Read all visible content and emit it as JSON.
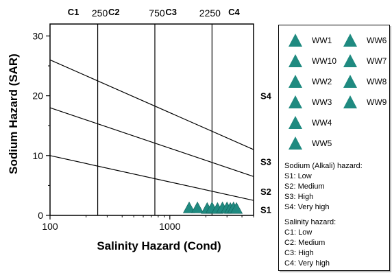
{
  "chart_data": {
    "type": "scatter",
    "title": "",
    "xlabel": "Salinity Hazard (Cond)",
    "ylabel": "Sodium Hazard (SAR)",
    "x_scale": "log",
    "xlim": [
      100,
      5000
    ],
    "ylim": [
      0,
      32
    ],
    "x_ticks": [
      "100",
      "1000"
    ],
    "y_ticks": [
      "0",
      "10",
      "20",
      "30"
    ],
    "top_class_labels": [
      "C1",
      "C2",
      "C3",
      "C4"
    ],
    "top_boundaries": [
      250,
      750,
      2250
    ],
    "top_boundary_labels": [
      "250",
      "750",
      "2250"
    ],
    "sodium_lines": [
      {
        "x": [
          100,
          5000
        ],
        "y": [
          10,
          2.5
        ]
      },
      {
        "x": [
          100,
          5000
        ],
        "y": [
          18,
          6.5
        ]
      },
      {
        "x": [
          100,
          5000
        ],
        "y": [
          26,
          11
        ]
      }
    ],
    "right_class_labels": [
      {
        "label": "S4",
        "y": 20
      },
      {
        "label": "S3",
        "y": 9
      },
      {
        "label": "S2",
        "y": 4
      },
      {
        "label": "S1",
        "y": 1
      }
    ],
    "series": [
      {
        "name": "WW1",
        "x": [
          1450
        ],
        "y": [
          1.2
        ]
      },
      {
        "name": "WW10",
        "x": [
          1700
        ],
        "y": [
          1.2
        ]
      },
      {
        "name": "WW2",
        "x": [
          2050
        ],
        "y": [
          1.1
        ]
      },
      {
        "name": "WW3",
        "x": [
          2250
        ],
        "y": [
          1.2
        ]
      },
      {
        "name": "WW4",
        "x": [
          2500
        ],
        "y": [
          1.1
        ]
      },
      {
        "name": "WW5",
        "x": [
          2750
        ],
        "y": [
          1.2
        ]
      },
      {
        "name": "WW6",
        "x": [
          3000
        ],
        "y": [
          1.2
        ]
      },
      {
        "name": "WW7",
        "x": [
          3200
        ],
        "y": [
          1.1
        ]
      },
      {
        "name": "WW8",
        "x": [
          3400
        ],
        "y": [
          1.2
        ]
      },
      {
        "name": "WW9",
        "x": [
          3600
        ],
        "y": [
          1.1
        ]
      }
    ],
    "marker_color": "#1f8a80",
    "legend_position": "right",
    "legend_notes": {
      "sodium_title": "Sodium (Alkali) hazard:",
      "sodium_items": [
        "S1: Low",
        "S2: Medium",
        "S3: High",
        "S4: Very high"
      ],
      "salinity_title": "Salinity hazard:",
      "salinity_items": [
        "C1: Low",
        "C2: Medium",
        "C3: High",
        "C4: Very high"
      ]
    }
  }
}
